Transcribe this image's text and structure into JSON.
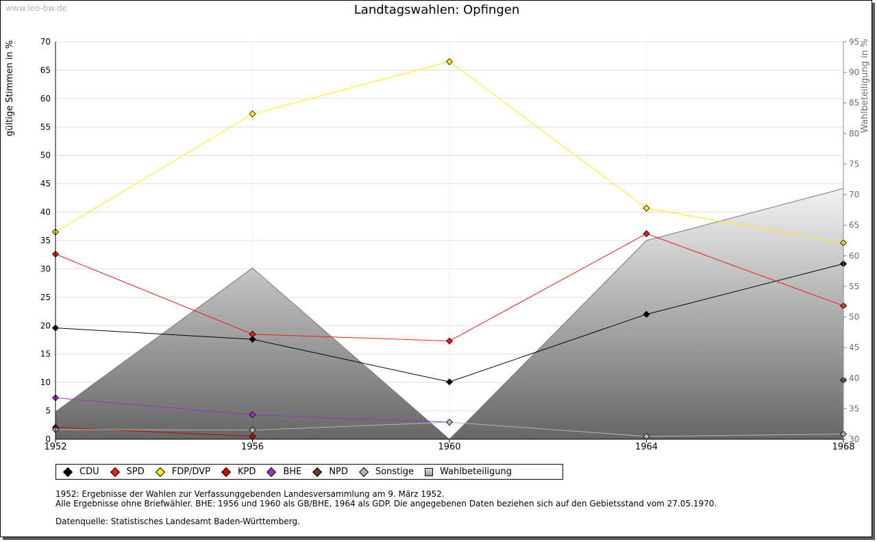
{
  "watermark": "www.leo-bw.de",
  "chart_data": {
    "type": "line",
    "title": "Landtagswahlen: Opfingen",
    "ylabel": "gültige Stimmen in %",
    "y2label": "Wahlbeteiligung in %",
    "xlabel": "",
    "ylim": [
      0,
      70
    ],
    "y2lim": [
      30,
      95
    ],
    "yticks": [
      0,
      5,
      10,
      15,
      20,
      25,
      30,
      35,
      40,
      45,
      50,
      55,
      60,
      65,
      70
    ],
    "y2ticks": [
      30,
      35,
      40,
      45,
      50,
      55,
      60,
      65,
      70,
      75,
      80,
      85,
      90,
      95
    ],
    "categories": [
      "1952",
      "1956",
      "1960",
      "1964",
      "1968"
    ],
    "grid": true,
    "legend_position": "bottom",
    "series": [
      {
        "name": "CDU",
        "color": "#000000",
        "values": [
          19.6,
          17.6,
          10.1,
          22.0,
          30.9
        ]
      },
      {
        "name": "SPD",
        "color": "#ee1c1c",
        "values": [
          32.6,
          18.5,
          17.3,
          36.2,
          23.5
        ]
      },
      {
        "name": "FDP/DVP",
        "color": "#ffee00",
        "values": [
          36.5,
          57.3,
          66.5,
          40.7,
          34.6
        ]
      },
      {
        "name": "KPD",
        "color": "#cc0000",
        "values": [
          2.1,
          0.5,
          null,
          null,
          null
        ]
      },
      {
        "name": "BHE",
        "color": "#9933cc",
        "values": [
          7.3,
          4.3,
          3.0,
          null,
          null
        ]
      },
      {
        "name": "NPD",
        "color": "#5a4030",
        "values": [
          null,
          null,
          null,
          null,
          10.4
        ]
      },
      {
        "name": "Sonstige",
        "color": "#b4b4b4",
        "values": [
          1.7,
          1.6,
          3.0,
          0.5,
          0.9
        ]
      }
    ],
    "turnout": {
      "name": "Wahlbeteiligung",
      "axis": "right",
      "values": [
        34.5,
        58.0,
        30.0,
        62.5,
        71.0
      ]
    }
  },
  "legend": [
    {
      "label": "CDU",
      "color": "#000000"
    },
    {
      "label": "SPD",
      "color": "#ee1c1c"
    },
    {
      "label": "FDP/DVP",
      "color": "#ffee00"
    },
    {
      "label": "KPD",
      "color": "#cc0000"
    },
    {
      "label": "BHE",
      "color": "#9933cc"
    },
    {
      "label": "NPD",
      "color": "#5a4030"
    },
    {
      "label": "Sonstige",
      "color": "#b4b4b4"
    },
    {
      "label": "Wahlbeteiligung",
      "color": "#aaaaaa"
    }
  ],
  "notes": {
    "line1": "1952: Ergebnisse der Wahlen zur Verfassunggebenden Landesversammlung am 9. März 1952.",
    "line2": "Alle Ergebnisse ohne Briefwähler. BHE: 1956 und 1960 als GB/BHE, 1964 als GDP. Die angegebenen Daten beziehen sich auf den Gebietsstand vom 27.05.1970.",
    "line3": "Datenquelle: Statistisches Landesamt Baden-Württemberg."
  }
}
